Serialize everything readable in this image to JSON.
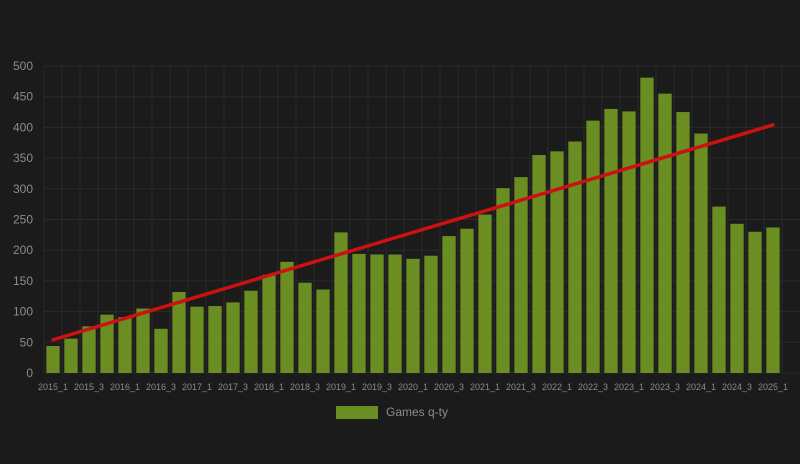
{
  "colors": {
    "background": "#1b1b1b",
    "bar": "#6b8e23",
    "trend": "#cc1111",
    "grid": "#2a2a2a",
    "text": "#8c8c8c"
  },
  "chart_data": {
    "type": "bar",
    "categories": [
      "2015_1",
      "2015_2",
      "2015_3",
      "2015_4",
      "2016_1",
      "2016_2",
      "2016_3",
      "2016_4",
      "2017_1",
      "2017_2",
      "2017_3",
      "2017_4",
      "2018_1",
      "2018_2",
      "2018_3",
      "2018_4",
      "2019_1",
      "2019_2",
      "2019_3",
      "2019_4",
      "2020_1",
      "2020_2",
      "2020_3",
      "2020_4",
      "2021_1",
      "2021_2",
      "2021_3",
      "2021_4",
      "2022_1",
      "2022_2",
      "2022_3",
      "2022_4",
      "2023_1",
      "2023_2",
      "2023_3",
      "2023_4",
      "2024_1",
      "2024_2",
      "2024_3",
      "2024_4",
      "2025_1"
    ],
    "tick_labels": [
      "2015_1",
      "2015_3",
      "2016_1",
      "2016_3",
      "2017_1",
      "2017_3",
      "2018_1",
      "2018_3",
      "2019_1",
      "2019_3",
      "2020_1",
      "2020_3",
      "2021_1",
      "2021_3",
      "2022_1",
      "2022_3",
      "2023_1",
      "2023_3",
      "2024_1",
      "2024_3",
      "2025_1"
    ],
    "series": [
      {
        "name": "Games q-ty",
        "values": [
          44,
          56,
          76,
          95,
          91,
          105,
          72,
          132,
          108,
          109,
          115,
          134,
          160,
          181,
          147,
          136,
          229,
          194,
          193,
          193,
          186,
          191,
          223,
          235,
          258,
          301,
          319,
          355,
          361,
          377,
          411,
          430,
          426,
          481,
          455,
          425,
          390,
          271,
          243,
          230,
          237
        ]
      }
    ],
    "trend": {
      "start": 54,
      "end": 404
    },
    "ylim": [
      0,
      500
    ],
    "yticks": [
      0,
      50,
      100,
      150,
      200,
      250,
      300,
      350,
      400,
      450,
      500
    ],
    "grid": true,
    "legend": "bottom-center"
  }
}
